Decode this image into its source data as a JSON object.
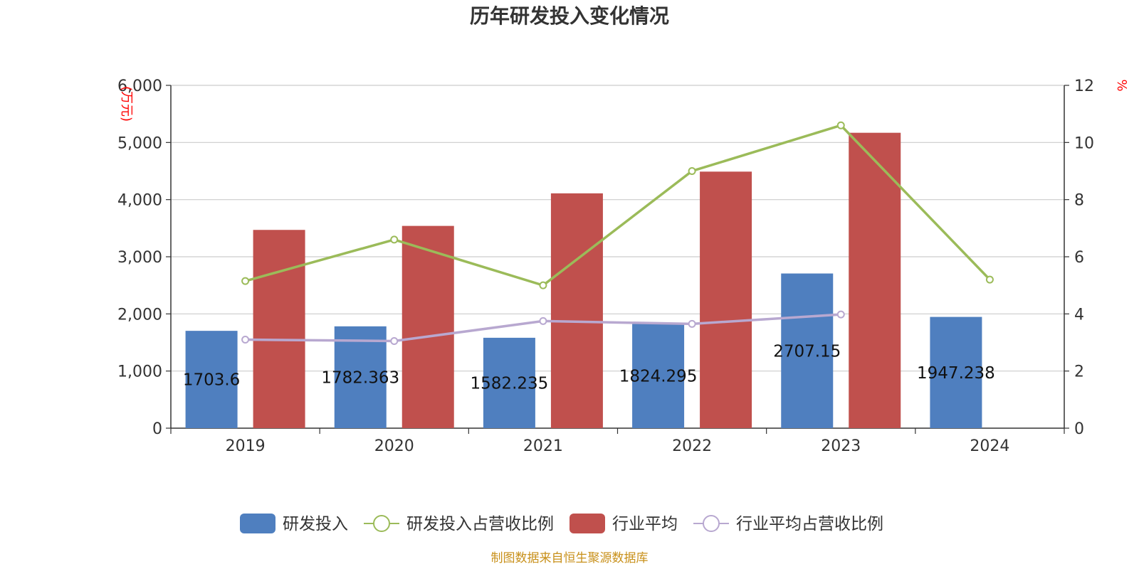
{
  "chart_data": {
    "type": "bar",
    "title": "历年研发投入变化情况",
    "source": "制图数据来自恒生聚源数据库",
    "y_left_unit": "(万元)",
    "y_right_unit": "%",
    "categories": [
      "2019",
      "2020",
      "2021",
      "2022",
      "2023",
      "2024"
    ],
    "y_left_ticks": [
      "0",
      "1,000",
      "2,000",
      "3,000",
      "4,000",
      "5,000",
      "6,000"
    ],
    "y_right_ticks": [
      "0",
      "2",
      "4",
      "6",
      "8",
      "10",
      "12"
    ],
    "ylim_left": [
      0,
      6000
    ],
    "ylim_right": [
      0,
      12
    ],
    "grid": true,
    "legend_position": "bottom",
    "series": [
      {
        "name": "研发投入",
        "kind": "bar",
        "axis": "left",
        "color": "#4f7fbf",
        "values": [
          1703.6,
          1782.363,
          1582.235,
          1824.295,
          2707.15,
          1947.238
        ],
        "labels": [
          "1703.6",
          "1782.363",
          "1582.235",
          "1824.295",
          "2707.15",
          "1947.238"
        ]
      },
      {
        "name": "研发投入占营收比例",
        "kind": "line",
        "axis": "right",
        "color": "#9bbb59",
        "values": [
          5.15,
          6.6,
          5.0,
          9.0,
          10.6,
          5.2
        ]
      },
      {
        "name": "行业平均",
        "kind": "bar",
        "axis": "left",
        "color": "#c0504d",
        "values": [
          3470,
          3540,
          4110,
          4490,
          5170,
          null
        ]
      },
      {
        "name": "行业平均占营收比例",
        "kind": "line",
        "axis": "right",
        "color": "#b8a8d0",
        "values": [
          3.1,
          3.05,
          3.75,
          3.65,
          3.98,
          null
        ]
      }
    ]
  }
}
